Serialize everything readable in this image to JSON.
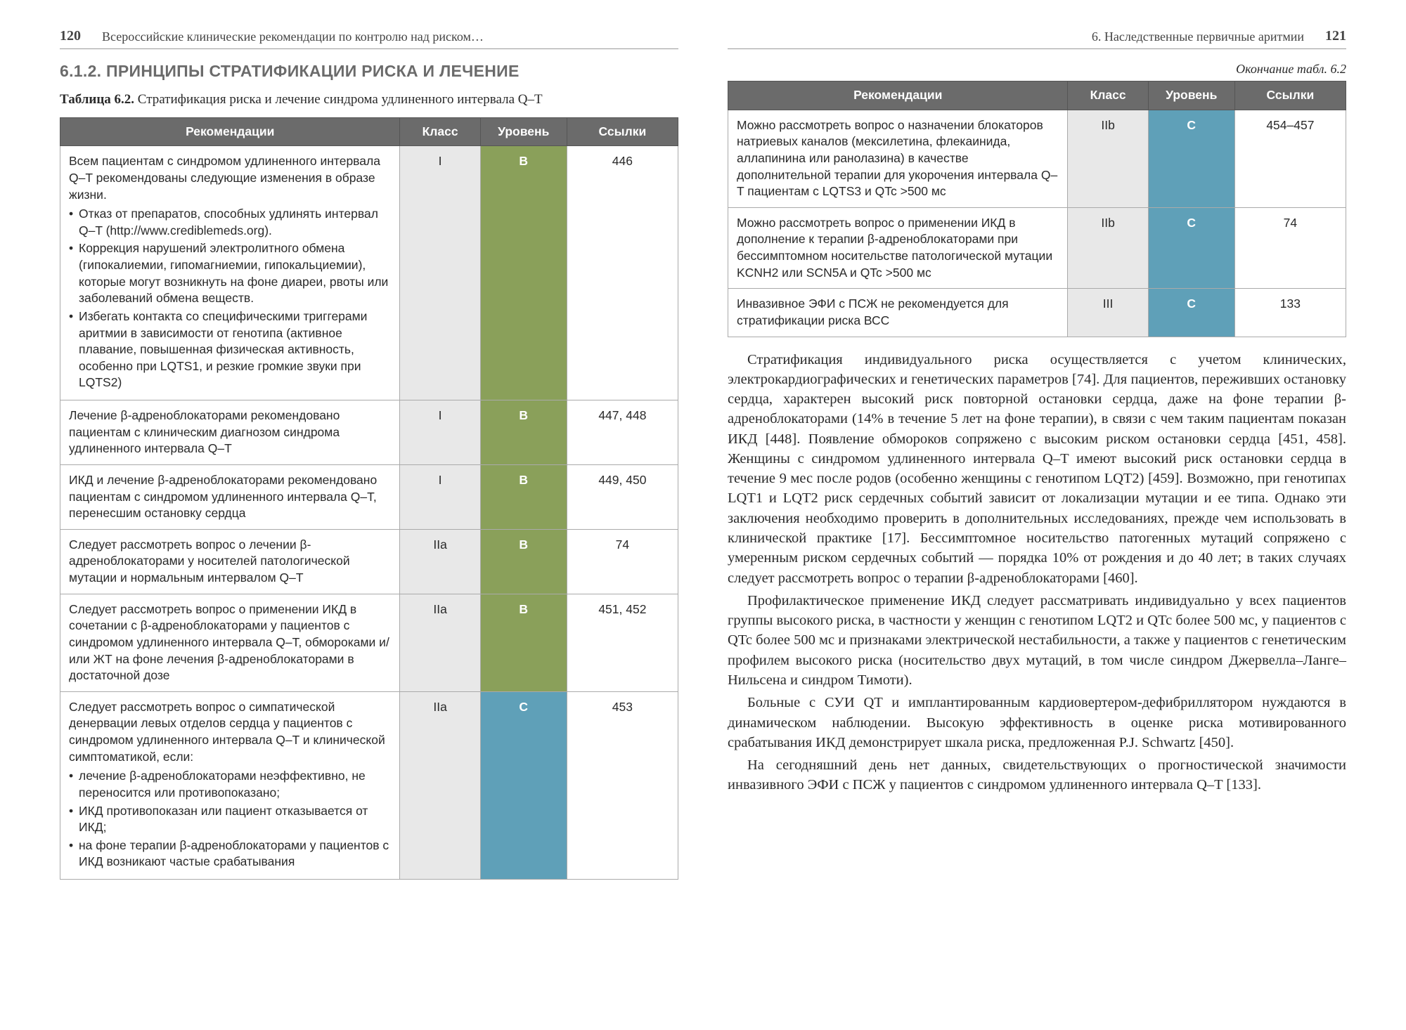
{
  "left": {
    "page_number": "120",
    "running_title": "Всероссийские клинические рекомендации по контролю над риском…",
    "section_heading": "6.1.2. ПРИНЦИПЫ СТРАТИФИКАЦИИ РИСКА И ЛЕЧЕНИЕ",
    "table_caption_label": "Таблица 6.2.",
    "table_caption_text": "Стратификация риска и лечение синдрома удлиненного интервала Q–T",
    "headers": {
      "recom": "Рекомендации",
      "klass": "Класс",
      "level": "Уровень",
      "refs": "Ссылки"
    },
    "level_colors": {
      "B": "#8aa05a",
      "C": "#5fa0b8"
    },
    "rows": [
      {
        "text_intro": "Всем пациентам с синдромом удлиненного интервала Q–T рекомендованы следующие изменения в образе жизни.",
        "bullets": [
          "Отказ от препаратов, способных удлинять интервал Q–T (http://www.crediblemeds.org).",
          "Коррекция нарушений электролитного обмена (гипокалиемии, гипомагниемии, гипокальциемии), которые могут возникнуть на фоне диареи, рвоты или заболеваний обмена веществ.",
          "Избегать контакта со специфическими триггерами аритмии в зависимости от генотипа (активное плавание, повышенная физическая активность, особенно при LQTS1, и резкие громкие звуки при LQTS2)"
        ],
        "klass": "I",
        "level": "B",
        "refs": "446"
      },
      {
        "text": "Лечение β-адреноблокаторами рекомендовано пациентам с клиническим диагнозом синдрома удлиненного интервала Q–T",
        "klass": "I",
        "level": "B",
        "refs": "447, 448"
      },
      {
        "text": "ИКД и лечение β-адреноблокаторами рекомендовано пациентам с синдромом удлиненного интервала Q–T, перенесшим остановку сердца",
        "klass": "I",
        "level": "B",
        "refs": "449, 450"
      },
      {
        "text": "Следует рассмотреть вопрос о лечении β-адреноблокаторами у носителей патологической мутации и нормальным интервалом Q–T",
        "klass": "IIa",
        "level": "B",
        "refs": "74"
      },
      {
        "text": "Следует рассмотреть вопрос о применении ИКД в сочетании с β-адреноблокаторами у пациентов с синдромом удлиненного интервала Q–T, обмороками и/или ЖТ на фоне лечения β-адреноблокаторами в достаточной дозе",
        "klass": "IIa",
        "level": "B",
        "refs": "451, 452"
      },
      {
        "text_intro": "Следует рассмотреть вопрос о симпатической денервации левых отделов сердца у пациентов с синдромом удлиненного интервала Q–T и клинической симптоматикой, если:",
        "bullets": [
          "лечение β-адреноблокаторами неэффективно, не переносится или противопоказано;",
          "ИКД противопоказан или пациент отказывается от ИКД;",
          "на фоне терапии β-адреноблокаторами у пациентов с ИКД возникают частые срабатывания"
        ],
        "klass": "IIa",
        "level": "C",
        "refs": "453"
      }
    ]
  },
  "right": {
    "page_number": "121",
    "running_title": "6. Наследственные первичные аритмии",
    "continuation": "Окончание табл. 6.2",
    "headers": {
      "recom": "Рекомендации",
      "klass": "Класс",
      "level": "Уровень",
      "refs": "Ссылки"
    },
    "rows": [
      {
        "text": "Можно рассмотреть вопрос о назначении блокаторов натриевых каналов (мексилетина, флекаинида, аллапинина или ранолазина) в качестве дополнительной терапии для укорочения интервала Q–T пациентам с LQTS3 и QTc >500 мс",
        "klass": "IIb",
        "level": "C",
        "refs": "454–457"
      },
      {
        "text": "Можно рассмотреть вопрос о применении ИКД в дополнение к терапии β-адреноблокаторами при бессимптомном носительстве патологической мутации KCNH2 или SCN5A и QTc >500 мс",
        "klass": "IIb",
        "level": "C",
        "refs": "74"
      },
      {
        "text": "Инвазивное ЭФИ с ПСЖ не рекомендуется для стратификации риска ВСС",
        "klass": "III",
        "level": "C",
        "refs": "133"
      }
    ],
    "paragraphs": [
      "Стратификация индивидуального риска осуществляется с учетом клинических, электрокардиографических и генетических параметров [74]. Для пациентов, переживших остановку сердца, характерен высокий риск повторной остановки сердца, даже на фоне терапии β-адреноблокаторами (14% в течение 5 лет на фоне терапии), в связи с чем таким пациентам показан ИКД [448]. Появление обмороков сопряжено с высоким риском остановки сердца [451, 458]. Женщины с синдромом удлиненного интервала Q–T имеют высокий риск остановки сердца в течение 9 мес после родов (особенно женщины с генотипом LQT2) [459]. Возможно, при генотипах LQT1 и LQT2 риск сердечных событий зависит от локализации мутации и ее типа. Однако эти заключения необходимо проверить в дополнительных исследованиях, прежде чем использовать в клинической практике [17]. Бессимптомное носительство патогенных мутаций сопряжено с умеренным риском сердечных событий — порядка 10% от рождения и до 40 лет; в таких случаях следует рассмотреть вопрос о терапии β-адреноблокаторами [460].",
      "Профилактическое применение ИКД следует рассматривать индивидуально у всех пациентов группы высокого риска, в частности у женщин с генотипом LQT2 и QTc более 500 мс, у пациентов с QTc более 500 мс и признаками электрической нестабильности, а также у пациентов с генетическим профилем высокого риска (носительство двух мутаций, в том числе синдром Джервелла–Ланге–Нильсена и синдром Тимоти).",
      "Больные с СУИ QT и имплантированным кардиовертером-дефибриллятором нуждаются в динамическом наблюдении. Высокую эффективность в оценке риска мотивированного срабатывания ИКД демонстрирует шкала риска, предложенная P.J. Schwartz [450].",
      "На сегодняшний день нет данных, свидетельствующих о прогностической значимости инвазивного ЭФИ с ПСЖ у пациентов с синдромом удлиненного интервала Q–T [133]."
    ]
  }
}
